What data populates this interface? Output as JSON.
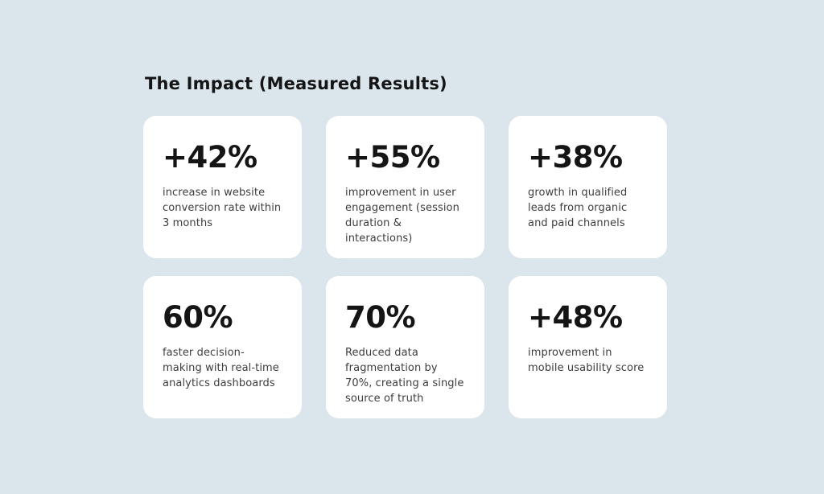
{
  "page": {
    "background_color": "#dbe5ec",
    "card_color": "#ffffff",
    "title_color": "#151515",
    "number_color": "#151515",
    "description_color": "#3d3d3d"
  },
  "title": "The Impact (Measured Results)",
  "cards": [
    {
      "value": "+42%",
      "description": "increase in website conversion rate within 3 months"
    },
    {
      "value": "+55%",
      "description": "improvement in user engagement (session duration & interactions)"
    },
    {
      "value": "+38%",
      "description": "growth in qualified leads from organic and paid channels"
    },
    {
      "value": "60%",
      "description": "faster decision-making with real-time analytics dashboards"
    },
    {
      "value": "70%",
      "description": "Reduced data fragmentation by 70%, creating a single source of truth"
    },
    {
      "value": "+48%",
      "description": "improvement in mobile usability score"
    }
  ]
}
